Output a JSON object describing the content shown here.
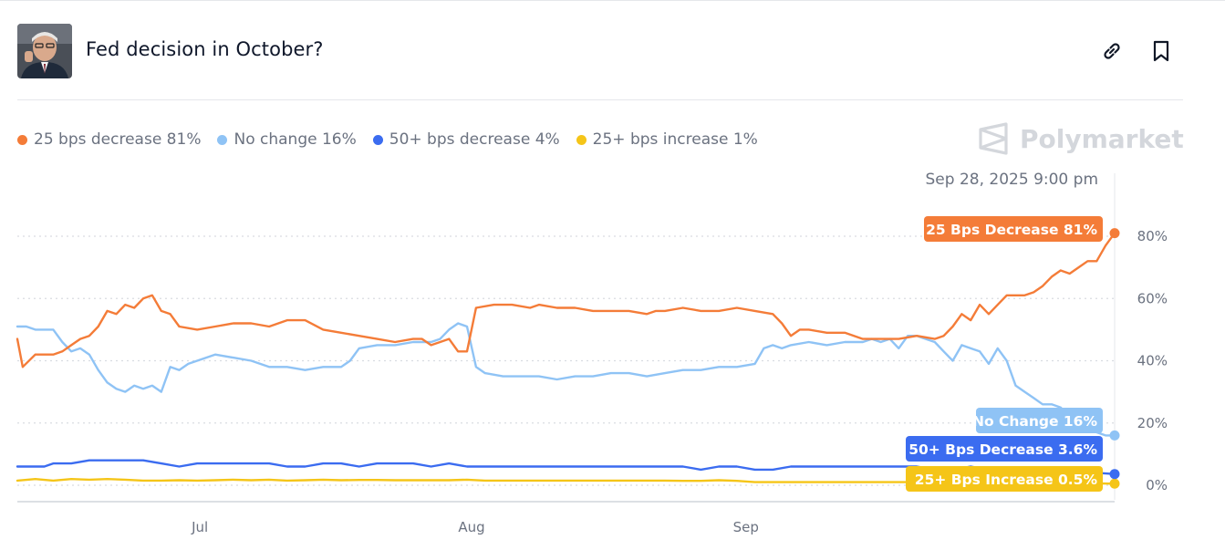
{
  "header": {
    "title": "Fed decision in October?",
    "avatar_icon": "person-photo",
    "link_icon": "link-icon",
    "bookmark_icon": "bookmark-icon"
  },
  "legend": [
    {
      "label": "25 bps decrease 81%",
      "color": "#f47c38"
    },
    {
      "label": "No change 16%",
      "color": "#8fc3f5"
    },
    {
      "label": "50+ bps decrease 4%",
      "color": "#3b6cf0"
    },
    {
      "label": "25+ bps increase 1%",
      "color": "#f5c518"
    }
  ],
  "brand": "Polymarket",
  "hover_date": "Sep 28, 2025 9:00 pm",
  "chart_data": {
    "type": "line",
    "x_ticks": [
      "Jul",
      "Aug",
      "Sep"
    ],
    "y_ticks": [
      "0%",
      "20%",
      "40%",
      "60%",
      "80%"
    ],
    "ylim": [
      0,
      80
    ],
    "grid": true,
    "series": [
      {
        "name": "25 Bps Decrease",
        "tag": "25 Bps Decrease 81%",
        "color": "#f47c38",
        "final": 81,
        "values": [
          [
            0,
            47
          ],
          [
            0.6,
            38
          ],
          [
            2,
            42
          ],
          [
            4,
            42
          ],
          [
            5,
            43
          ],
          [
            6,
            45
          ],
          [
            7,
            47
          ],
          [
            8,
            48
          ],
          [
            9,
            51
          ],
          [
            10,
            56
          ],
          [
            11,
            55
          ],
          [
            12,
            58
          ],
          [
            13,
            57
          ],
          [
            14,
            60
          ],
          [
            15,
            61
          ],
          [
            16,
            56
          ],
          [
            17,
            55
          ],
          [
            18,
            51
          ],
          [
            20,
            50
          ],
          [
            22,
            51
          ],
          [
            24,
            52
          ],
          [
            26,
            52
          ],
          [
            28,
            51
          ],
          [
            30,
            53
          ],
          [
            32,
            53
          ],
          [
            34,
            50
          ],
          [
            36,
            49
          ],
          [
            38,
            48
          ],
          [
            40,
            47
          ],
          [
            42,
            46
          ],
          [
            44,
            47
          ],
          [
            45,
            47
          ],
          [
            46,
            45
          ],
          [
            47,
            46
          ],
          [
            48,
            47
          ],
          [
            49,
            43
          ],
          [
            50,
            43
          ],
          [
            51,
            57
          ],
          [
            53,
            58
          ],
          [
            55,
            58
          ],
          [
            57,
            57
          ],
          [
            58,
            58
          ],
          [
            60,
            57
          ],
          [
            62,
            57
          ],
          [
            64,
            56
          ],
          [
            66,
            56
          ],
          [
            68,
            56
          ],
          [
            70,
            55
          ],
          [
            71,
            56
          ],
          [
            72,
            56
          ],
          [
            74,
            57
          ],
          [
            76,
            56
          ],
          [
            78,
            56
          ],
          [
            80,
            57
          ],
          [
            82,
            56
          ],
          [
            84,
            55
          ],
          [
            85,
            52
          ],
          [
            86,
            48
          ],
          [
            87,
            50
          ],
          [
            88,
            50
          ],
          [
            90,
            49
          ],
          [
            92,
            49
          ],
          [
            94,
            47
          ],
          [
            96,
            47
          ],
          [
            98,
            47
          ],
          [
            100,
            48
          ],
          [
            102,
            47
          ],
          [
            103,
            48
          ],
          [
            104,
            51
          ],
          [
            105,
            55
          ],
          [
            106,
            53
          ],
          [
            107,
            58
          ],
          [
            108,
            55
          ],
          [
            109,
            58
          ],
          [
            110,
            61
          ],
          [
            111,
            61
          ],
          [
            112,
            61
          ],
          [
            113,
            62
          ],
          [
            114,
            64
          ],
          [
            115,
            67
          ],
          [
            116,
            69
          ],
          [
            117,
            68
          ],
          [
            118,
            70
          ],
          [
            119,
            72
          ],
          [
            120,
            72
          ],
          [
            121,
            77
          ],
          [
            122,
            81
          ]
        ]
      },
      {
        "name": "No Change",
        "tag": "No Change 16%",
        "color": "#8fc3f5",
        "final": 16,
        "values": [
          [
            0,
            51
          ],
          [
            1,
            51
          ],
          [
            2,
            50
          ],
          [
            4,
            50
          ],
          [
            5,
            46
          ],
          [
            6,
            43
          ],
          [
            7,
            44
          ],
          [
            8,
            42
          ],
          [
            9,
            37
          ],
          [
            10,
            33
          ],
          [
            11,
            31
          ],
          [
            12,
            30
          ],
          [
            13,
            32
          ],
          [
            14,
            31
          ],
          [
            15,
            32
          ],
          [
            16,
            30
          ],
          [
            17,
            38
          ],
          [
            18,
            37
          ],
          [
            19,
            39
          ],
          [
            20,
            40
          ],
          [
            21,
            41
          ],
          [
            22,
            42
          ],
          [
            24,
            41
          ],
          [
            26,
            40
          ],
          [
            28,
            38
          ],
          [
            30,
            38
          ],
          [
            32,
            37
          ],
          [
            34,
            38
          ],
          [
            36,
            38
          ],
          [
            37,
            40
          ],
          [
            38,
            44
          ],
          [
            40,
            45
          ],
          [
            42,
            45
          ],
          [
            44,
            46
          ],
          [
            46,
            46
          ],
          [
            47,
            47
          ],
          [
            48,
            50
          ],
          [
            49,
            52
          ],
          [
            50,
            51
          ],
          [
            51,
            38
          ],
          [
            52,
            36
          ],
          [
            54,
            35
          ],
          [
            56,
            35
          ],
          [
            58,
            35
          ],
          [
            60,
            34
          ],
          [
            62,
            35
          ],
          [
            64,
            35
          ],
          [
            66,
            36
          ],
          [
            68,
            36
          ],
          [
            70,
            35
          ],
          [
            72,
            36
          ],
          [
            74,
            37
          ],
          [
            76,
            37
          ],
          [
            78,
            38
          ],
          [
            80,
            38
          ],
          [
            82,
            39
          ],
          [
            83,
            44
          ],
          [
            84,
            45
          ],
          [
            85,
            44
          ],
          [
            86,
            45
          ],
          [
            88,
            46
          ],
          [
            90,
            45
          ],
          [
            92,
            46
          ],
          [
            94,
            46
          ],
          [
            95,
            47
          ],
          [
            96,
            46
          ],
          [
            97,
            47
          ],
          [
            98,
            44
          ],
          [
            99,
            48
          ],
          [
            100,
            48
          ],
          [
            101,
            47
          ],
          [
            102,
            46
          ],
          [
            103,
            43
          ],
          [
            104,
            40
          ],
          [
            105,
            45
          ],
          [
            106,
            44
          ],
          [
            107,
            43
          ],
          [
            108,
            39
          ],
          [
            109,
            44
          ],
          [
            110,
            40
          ],
          [
            111,
            32
          ],
          [
            112,
            30
          ],
          [
            113,
            28
          ],
          [
            114,
            26
          ],
          [
            115,
            26
          ],
          [
            116,
            25
          ],
          [
            117,
            22
          ],
          [
            118,
            21
          ],
          [
            119,
            19
          ],
          [
            120,
            17
          ],
          [
            121,
            16
          ],
          [
            122,
            16
          ]
        ]
      },
      {
        "name": "50+ Bps Decrease",
        "tag": "50+ Bps Decrease 3.6%",
        "color": "#3b6cf0",
        "final": 3.6,
        "values": [
          [
            0,
            6
          ],
          [
            3,
            6
          ],
          [
            4,
            7
          ],
          [
            6,
            7
          ],
          [
            8,
            8
          ],
          [
            10,
            8
          ],
          [
            12,
            8
          ],
          [
            14,
            8
          ],
          [
            16,
            7
          ],
          [
            18,
            6
          ],
          [
            20,
            7
          ],
          [
            22,
            7
          ],
          [
            24,
            7
          ],
          [
            26,
            7
          ],
          [
            28,
            7
          ],
          [
            30,
            6
          ],
          [
            32,
            6
          ],
          [
            34,
            7
          ],
          [
            36,
            7
          ],
          [
            38,
            6
          ],
          [
            40,
            7
          ],
          [
            42,
            7
          ],
          [
            44,
            7
          ],
          [
            46,
            6
          ],
          [
            48,
            7
          ],
          [
            50,
            6
          ],
          [
            52,
            6
          ],
          [
            54,
            6
          ],
          [
            56,
            6
          ],
          [
            58,
            6
          ],
          [
            60,
            6
          ],
          [
            62,
            6
          ],
          [
            64,
            6
          ],
          [
            66,
            6
          ],
          [
            68,
            6
          ],
          [
            70,
            6
          ],
          [
            72,
            6
          ],
          [
            74,
            6
          ],
          [
            76,
            5
          ],
          [
            78,
            6
          ],
          [
            80,
            6
          ],
          [
            82,
            5
          ],
          [
            84,
            5
          ],
          [
            86,
            6
          ],
          [
            88,
            6
          ],
          [
            90,
            6
          ],
          [
            92,
            6
          ],
          [
            94,
            6
          ],
          [
            96,
            6
          ],
          [
            98,
            6
          ],
          [
            100,
            6
          ],
          [
            102,
            5
          ],
          [
            104,
            5
          ],
          [
            106,
            6
          ],
          [
            108,
            5
          ],
          [
            110,
            5
          ],
          [
            112,
            5
          ],
          [
            114,
            5
          ],
          [
            116,
            5
          ],
          [
            118,
            5
          ],
          [
            120,
            4
          ],
          [
            122,
            3.6
          ]
        ]
      },
      {
        "name": "25+ Bps Increase",
        "tag": "25+ Bps Increase 0.5%",
        "color": "#f5c518",
        "final": 0.5,
        "values": [
          [
            0,
            1.5
          ],
          [
            2,
            2
          ],
          [
            4,
            1.5
          ],
          [
            6,
            2
          ],
          [
            8,
            1.8
          ],
          [
            10,
            2
          ],
          [
            12,
            1.8
          ],
          [
            14,
            1.5
          ],
          [
            16,
            1.5
          ],
          [
            18,
            1.6
          ],
          [
            20,
            1.5
          ],
          [
            22,
            1.6
          ],
          [
            24,
            1.8
          ],
          [
            26,
            1.6
          ],
          [
            28,
            1.8
          ],
          [
            30,
            1.5
          ],
          [
            32,
            1.6
          ],
          [
            34,
            1.8
          ],
          [
            36,
            1.6
          ],
          [
            38,
            1.7
          ],
          [
            40,
            1.7
          ],
          [
            42,
            1.6
          ],
          [
            44,
            1.6
          ],
          [
            46,
            1.6
          ],
          [
            48,
            1.6
          ],
          [
            50,
            1.8
          ],
          [
            52,
            1.5
          ],
          [
            54,
            1.5
          ],
          [
            56,
            1.5
          ],
          [
            58,
            1.5
          ],
          [
            60,
            1.5
          ],
          [
            62,
            1.5
          ],
          [
            64,
            1.5
          ],
          [
            66,
            1.5
          ],
          [
            68,
            1.5
          ],
          [
            70,
            1.5
          ],
          [
            72,
            1.5
          ],
          [
            74,
            1.4
          ],
          [
            76,
            1.4
          ],
          [
            78,
            1.6
          ],
          [
            80,
            1.4
          ],
          [
            82,
            1.0
          ],
          [
            84,
            1.0
          ],
          [
            86,
            1.0
          ],
          [
            88,
            1.0
          ],
          [
            90,
            1.0
          ],
          [
            92,
            1.0
          ],
          [
            94,
            1.0
          ],
          [
            96,
            1.0
          ],
          [
            98,
            1.0
          ],
          [
            100,
            1.0
          ],
          [
            102,
            0.9
          ],
          [
            104,
            0.8
          ],
          [
            106,
            0.8
          ],
          [
            108,
            0.8
          ],
          [
            110,
            0.8
          ],
          [
            112,
            0.7
          ],
          [
            114,
            0.7
          ],
          [
            116,
            0.7
          ],
          [
            118,
            0.6
          ],
          [
            120,
            0.6
          ],
          [
            122,
            0.5
          ]
        ]
      }
    ]
  }
}
